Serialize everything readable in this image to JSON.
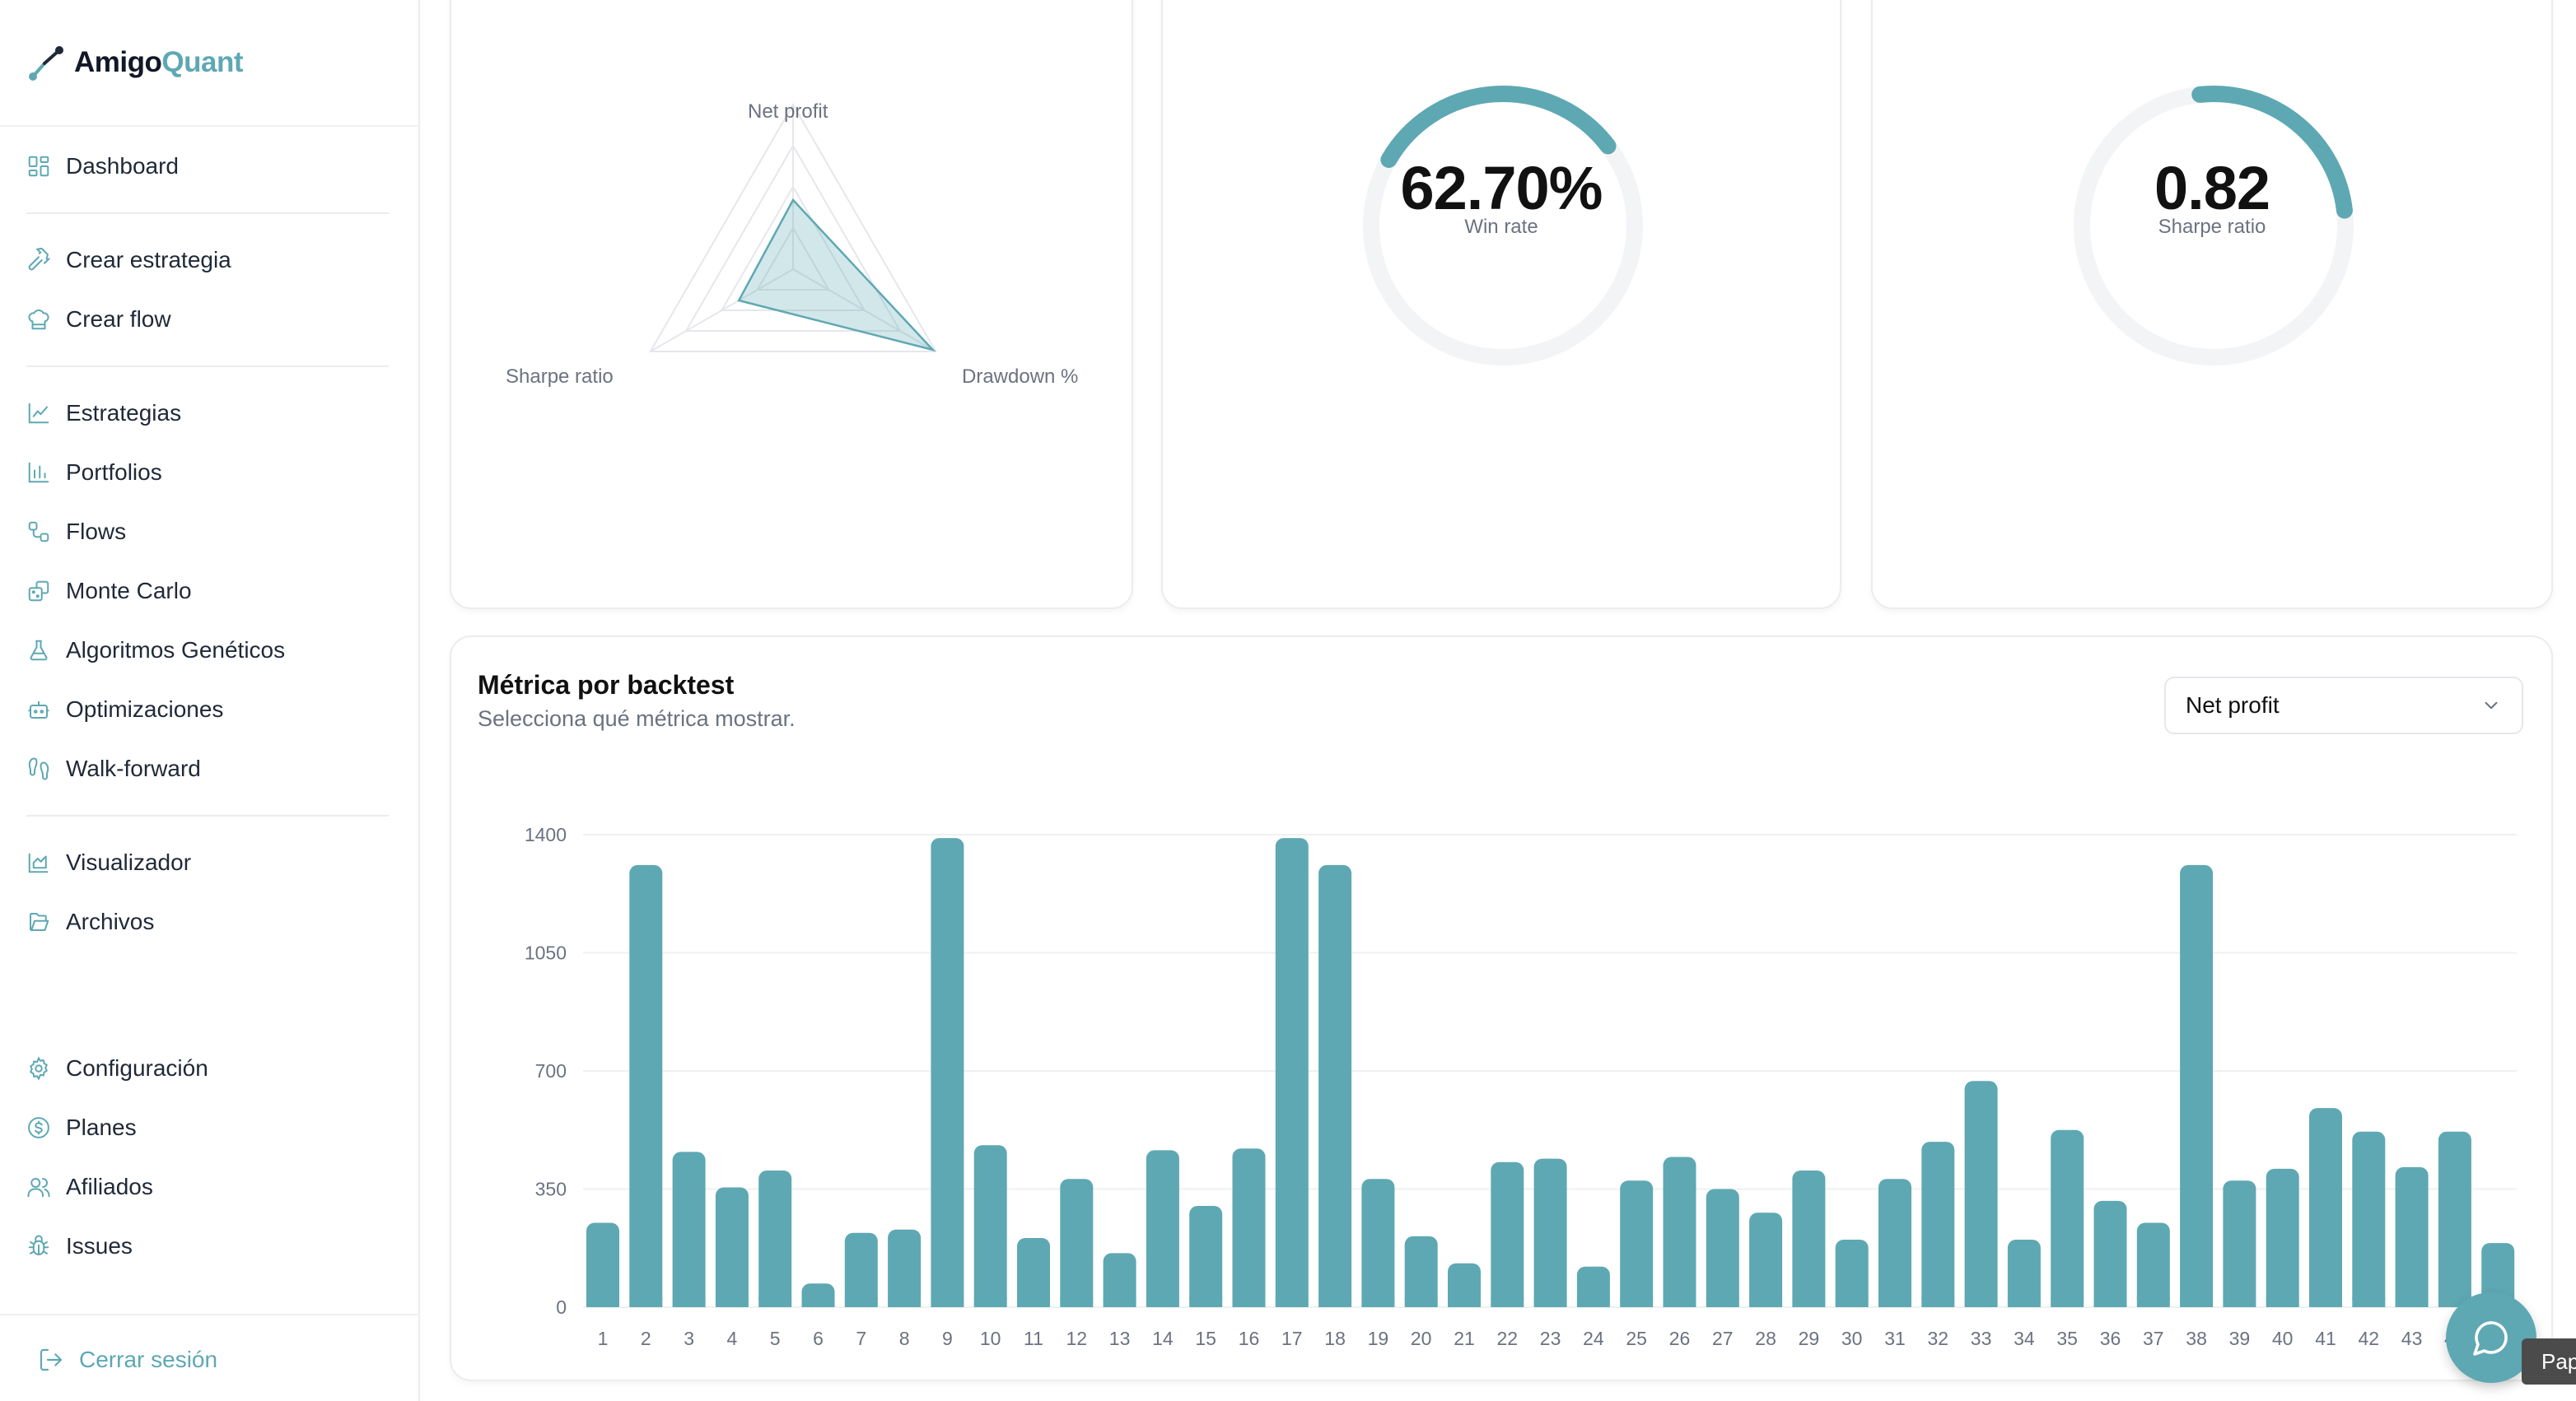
{
  "brand": {
    "name_part1": "Amigo",
    "name_part2": "Quant",
    "accent_color": "#5ea8b3"
  },
  "sidebar": {
    "items": [
      {
        "label": "Dashboard",
        "icon": "dashboard-grid-icon"
      },
      {
        "label": "Crear estrategia",
        "icon": "hammer-icon"
      },
      {
        "label": "Crear flow",
        "icon": "chef-hat-icon"
      },
      {
        "label": "Estrategias",
        "icon": "line-chart-icon"
      },
      {
        "label": "Portfolios",
        "icon": "bar-chart-icon"
      },
      {
        "label": "Flows",
        "icon": "workflow-icon"
      },
      {
        "label": "Monte Carlo",
        "icon": "dice-icon"
      },
      {
        "label": "Algoritmos Genéticos",
        "icon": "flask-icon"
      },
      {
        "label": "Optimizaciones",
        "icon": "robot-icon"
      },
      {
        "label": "Walk-forward",
        "icon": "footprints-icon"
      },
      {
        "label": "Visualizador",
        "icon": "area-chart-icon"
      },
      {
        "label": "Archivos",
        "icon": "folder-open-icon"
      },
      {
        "label": "Configuración",
        "icon": "settings-gear-icon"
      },
      {
        "label": "Planes",
        "icon": "dollar-circle-icon"
      },
      {
        "label": "Afiliados",
        "icon": "users-icon"
      },
      {
        "label": "Issues",
        "icon": "bug-icon"
      }
    ],
    "logout_label": "Cerrar sesión"
  },
  "radar": {
    "labels": [
      "Net profit",
      "Drawdown %",
      "Sharpe ratio"
    ],
    "values": [
      0.42,
      0.98,
      0.38
    ]
  },
  "winrate": {
    "value": "62.70%",
    "label": "Win rate",
    "fraction": 0.627
  },
  "sharpe": {
    "value": "0.82",
    "label": "Sharpe ratio",
    "fraction": 0.27
  },
  "metric_card": {
    "title": "Métrica por backtest",
    "subtitle": "Selecciona qué métrica mostrar.",
    "selected_metric": "Net profit"
  },
  "chart_data": {
    "type": "bar",
    "ylim": [
      0,
      1400
    ],
    "yticks": [
      0,
      350,
      700,
      1050,
      1400
    ],
    "categories": [
      "1",
      "2",
      "3",
      "4",
      "5",
      "6",
      "7",
      "8",
      "9",
      "10",
      "11",
      "12",
      "13",
      "14",
      "15",
      "16",
      "17",
      "18",
      "19",
      "20",
      "21",
      "22",
      "23",
      "24",
      "25",
      "26",
      "27",
      "28",
      "29",
      "30",
      "31",
      "32",
      "33",
      "34",
      "35",
      "36",
      "37",
      "38",
      "39",
      "40",
      "41",
      "42",
      "43",
      "44"
    ],
    "values": [
      250,
      1310,
      460,
      355,
      405,
      70,
      220,
      230,
      1390,
      480,
      205,
      380,
      160,
      465,
      300,
      470,
      1390,
      1310,
      380,
      210,
      130,
      430,
      440,
      120,
      375,
      445,
      350,
      280,
      405,
      200,
      380,
      490,
      670,
      200,
      525,
      315,
      250,
      1310,
      375,
      410,
      590,
      520,
      415,
      520
    ],
    "partial_last_bar_value": 190,
    "grid": true
  },
  "overlay": {
    "pap_text": "Pap"
  }
}
